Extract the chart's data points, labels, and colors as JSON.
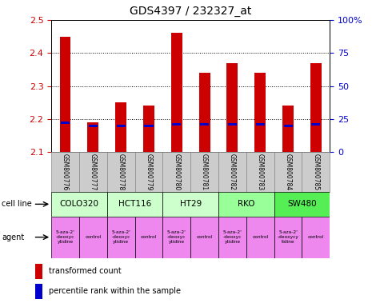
{
  "title": "GDS4397 / 232327_at",
  "samples": [
    "GSM800776",
    "GSM800777",
    "GSM800778",
    "GSM800779",
    "GSM800780",
    "GSM800781",
    "GSM800782",
    "GSM800783",
    "GSM800784",
    "GSM800785"
  ],
  "transformed_counts": [
    2.45,
    2.19,
    2.25,
    2.24,
    2.46,
    2.34,
    2.37,
    2.34,
    2.24,
    2.37
  ],
  "percentile_ranks": [
    22,
    20,
    20,
    20,
    21,
    21,
    21,
    21,
    20,
    21
  ],
  "ylim": [
    2.1,
    2.5
  ],
  "y_ticks": [
    2.1,
    2.2,
    2.3,
    2.4,
    2.5
  ],
  "y2_ticks": [
    0,
    25,
    50,
    75,
    100
  ],
  "y2_labels": [
    "0",
    "25",
    "50",
    "75",
    "100%"
  ],
  "cell_line_groups": [
    {
      "name": "COLO320",
      "start": 0,
      "end": 2,
      "color": "#ccffcc"
    },
    {
      "name": "HCT116",
      "start": 2,
      "end": 4,
      "color": "#ccffcc"
    },
    {
      "name": "HT29",
      "start": 4,
      "end": 6,
      "color": "#ccffcc"
    },
    {
      "name": "RKO",
      "start": 6,
      "end": 8,
      "color": "#99ff99"
    },
    {
      "name": "SW480",
      "start": 8,
      "end": 10,
      "color": "#55ee55"
    }
  ],
  "agent_groups": [
    {
      "name": "5-aza-2'\n-deoxyc\nytidine",
      "start": 0,
      "end": 1,
      "color": "#ee88ee"
    },
    {
      "name": "control",
      "start": 1,
      "end": 2,
      "color": "#ee88ee"
    },
    {
      "name": "5-aza-2'\n-deoxyc\nytidine",
      "start": 2,
      "end": 3,
      "color": "#ee88ee"
    },
    {
      "name": "control",
      "start": 3,
      "end": 4,
      "color": "#ee88ee"
    },
    {
      "name": "5-aza-2'\n-deoxyc\nytidine",
      "start": 4,
      "end": 5,
      "color": "#ee88ee"
    },
    {
      "name": "control",
      "start": 5,
      "end": 6,
      "color": "#ee88ee"
    },
    {
      "name": "5-aza-2'\n-deoxyc\nytidine",
      "start": 6,
      "end": 7,
      "color": "#ee88ee"
    },
    {
      "name": "control",
      "start": 7,
      "end": 8,
      "color": "#ee88ee"
    },
    {
      "name": "5-aza-2'\n-deoxycy\ntidine",
      "start": 8,
      "end": 9,
      "color": "#ee88ee"
    },
    {
      "name": "control",
      "start": 9,
      "end": 10,
      "color": "#ee88ee"
    }
  ],
  "bar_color": "#cc0000",
  "percentile_color": "#0000cc",
  "bar_bottom": 2.1,
  "grid_color": "#888888",
  "label_color_red": "#cc0000",
  "label_color_blue": "#0000cc",
  "sample_bg_color": "#cccccc",
  "sample_border_color": "#888888"
}
